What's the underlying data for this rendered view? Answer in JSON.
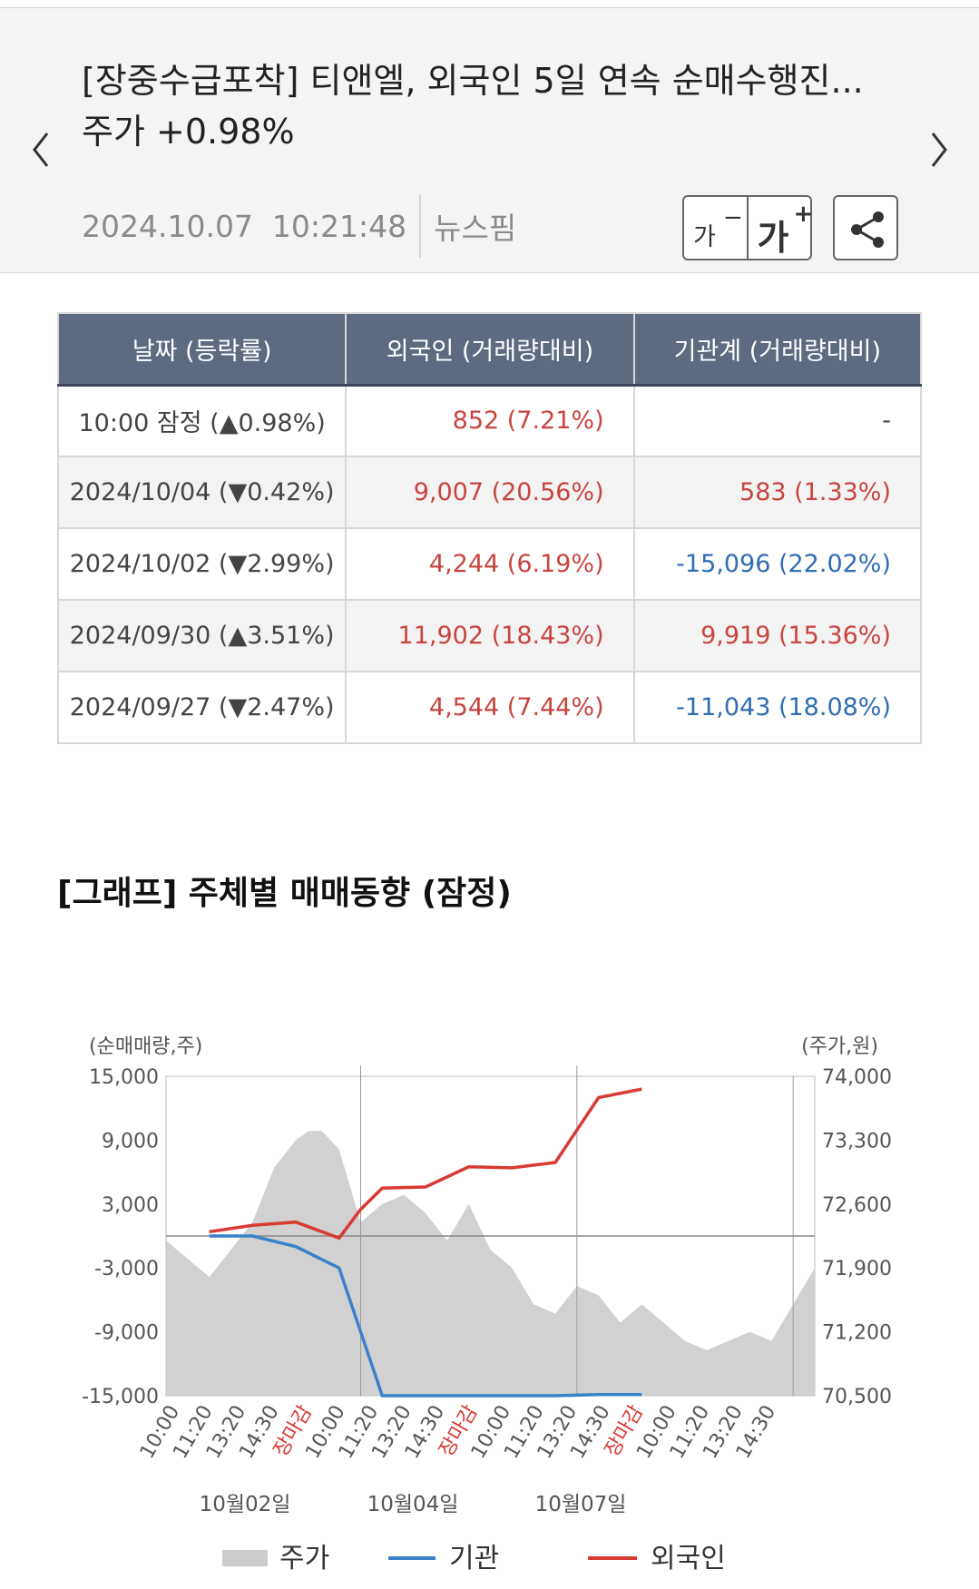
{
  "article": {
    "title": "[장중수급포착] 티앤엘, 외국인 5일 연속 순매수행진... 주가 +0.98%",
    "datetime": "2024.10.07  10:21:48",
    "source": "뉴스핌",
    "font_smaller_label": "가",
    "font_smaller_sign": "−",
    "font_bigger_label": "가",
    "font_bigger_sign": "+",
    "prev_icon": "chevron-left-icon",
    "next_icon": "chevron-right-icon",
    "share_icon": "share-icon"
  },
  "table": {
    "headers": [
      "날짜 (등락률)",
      "외국인 (거래량대비)",
      "기관계 (거래량대비)"
    ],
    "rows": [
      {
        "date": "10:00 잠정 (▲0.98%)",
        "foreign": "852 (7.21%)",
        "foreign_dir": "up",
        "inst": "-",
        "inst_dir": "plain"
      },
      {
        "date": "2024/10/04 (▼0.42%)",
        "foreign": "9,007 (20.56%)",
        "foreign_dir": "up",
        "inst": "583 (1.33%)",
        "inst_dir": "up"
      },
      {
        "date": "2024/10/02 (▼2.99%)",
        "foreign": "4,244 (6.19%)",
        "foreign_dir": "up",
        "inst": "-15,096 (22.02%)",
        "inst_dir": "down"
      },
      {
        "date": "2024/09/30 (▲3.51%)",
        "foreign": "11,902 (18.43%)",
        "foreign_dir": "up",
        "inst": "9,919 (15.36%)",
        "inst_dir": "up"
      },
      {
        "date": "2024/09/27 (▼2.47%)",
        "foreign": "4,544 (7.44%)",
        "foreign_dir": "up",
        "inst": "-11,043 (18.08%)",
        "inst_dir": "down"
      }
    ],
    "colors": {
      "up": "#c9443f",
      "down": "#2f6db3"
    }
  },
  "graph_title": "[그래프] 주체별 매매동향 (잠정)",
  "chart_data": {
    "type": "line",
    "ylabel_left": "(순매매량,주)",
    "ylabel_right": "(주가,원)",
    "y_left_ticks": [
      "15,000",
      "9,000",
      "3,000",
      "-3,000",
      "-9,000",
      "-15,000"
    ],
    "y_right_ticks": [
      "74,000",
      "73,300",
      "72,600",
      "71,900",
      "71,200",
      "70,500"
    ],
    "ylim_left": [
      -15000,
      15000
    ],
    "ylim_right": [
      70500,
      74000
    ],
    "x_ticks": [
      "10:00",
      "11:20",
      "13:20",
      "14:30",
      "장마감",
      "10:00",
      "11:20",
      "13:20",
      "14:30",
      "장마감",
      "10:00",
      "11:20",
      "13:20",
      "14:30",
      "장마감",
      "10:00",
      "11:20",
      "13:20",
      "14:30"
    ],
    "closing_label": "장마감",
    "days": [
      "10월02일",
      "10월04일",
      "10월07일"
    ],
    "x_range": [
      0,
      15
    ],
    "series": [
      {
        "name": "외국인",
        "color": "#d83a34",
        "x": [
          1,
          2,
          3,
          4,
          4.5,
          5,
          6,
          7,
          8,
          9,
          10,
          11
        ],
        "values": [
          400,
          1000,
          1300,
          -200,
          2500,
          4500,
          4600,
          6500,
          6400,
          6900,
          13000,
          13800
        ]
      },
      {
        "name": "기관",
        "color": "#3b82c9",
        "x": [
          1,
          2,
          3,
          4,
          5,
          6,
          7,
          8,
          9,
          10,
          11
        ],
        "values": [
          0,
          0,
          -1000,
          -3000,
          -15000,
          -15000,
          -15000,
          -15000,
          -15000,
          -14900,
          -14900
        ]
      },
      {
        "name": "주가",
        "color": "#cccccc",
        "x": [
          0,
          0.5,
          1,
          1.5,
          2,
          2.5,
          3,
          3.3,
          3.6,
          4,
          4.5,
          5,
          5.5,
          6,
          6.5,
          7,
          7.5,
          8,
          8.5,
          9,
          9.5,
          10,
          10.5,
          11,
          11.5,
          12,
          12.5,
          13,
          13.5,
          14,
          14.5,
          15
        ],
        "values": [
          72200,
          72000,
          71800,
          72100,
          72400,
          73000,
          73300,
          73400,
          73400,
          73200,
          72400,
          72600,
          72700,
          72500,
          72200,
          72600,
          72100,
          71900,
          71500,
          71400,
          71700,
          71600,
          71300,
          71500,
          71300,
          71100,
          71000,
          71100,
          71200,
          71100,
          71500,
          71900
        ]
      }
    ],
    "legend": [
      "주가",
      "기관",
      "외국인"
    ],
    "legend_placement": "bottom",
    "grid": true
  }
}
